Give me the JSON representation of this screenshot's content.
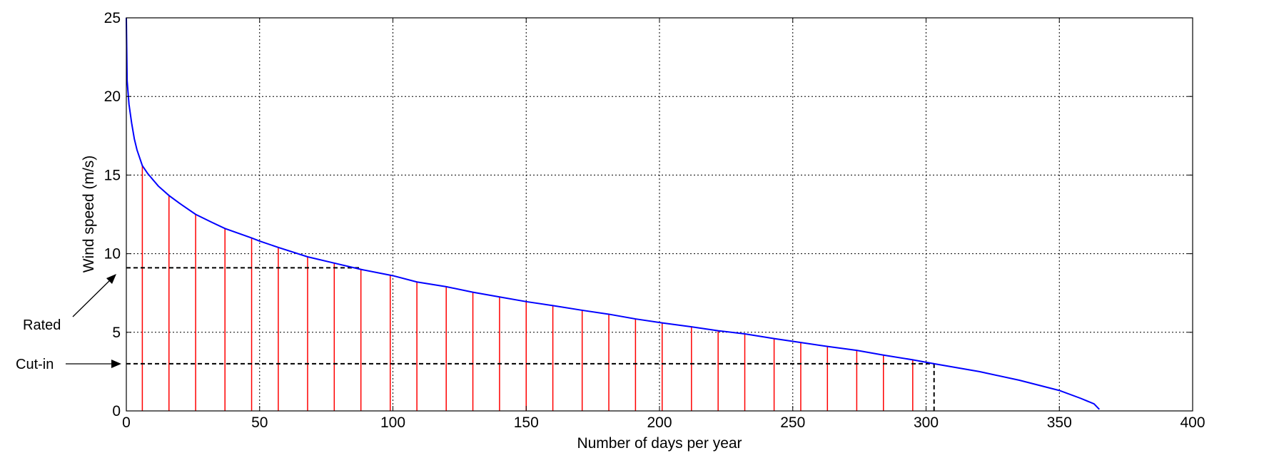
{
  "chart_data": {
    "type": "line",
    "title": "",
    "xlabel": "Number of days per year",
    "ylabel": "Wind speed (m/s)",
    "xlim": [
      0,
      400
    ],
    "ylim": [
      0,
      25
    ],
    "xticks": [
      0,
      50,
      100,
      150,
      200,
      250,
      300,
      350,
      400
    ],
    "yticks": [
      0,
      5,
      10,
      15,
      20,
      25
    ],
    "grid": true,
    "colors": {
      "curve": "#0000ff",
      "stems": "#ff0000",
      "reference": "#000000"
    },
    "series": [
      {
        "values": [
          [
            0,
            25
          ],
          [
            0.3,
            21
          ],
          [
            1,
            19.5
          ],
          [
            2,
            18.3
          ],
          [
            3,
            17.3
          ],
          [
            4,
            16.6
          ],
          [
            6,
            15.6
          ],
          [
            8,
            15.1
          ],
          [
            12,
            14.3
          ],
          [
            16,
            13.7
          ],
          [
            20,
            13.2
          ],
          [
            26,
            12.5
          ],
          [
            32,
            12
          ],
          [
            37,
            11.6
          ],
          [
            47,
            11
          ],
          [
            50,
            10.8
          ],
          [
            57,
            10.4
          ],
          [
            68,
            9.8
          ],
          [
            78,
            9.4
          ],
          [
            88,
            9.0
          ],
          [
            100,
            8.6
          ],
          [
            109,
            8.2
          ],
          [
            120,
            7.9
          ],
          [
            130,
            7.55
          ],
          [
            140,
            7.25
          ],
          [
            150,
            6.95
          ],
          [
            160,
            6.7
          ],
          [
            171,
            6.4
          ],
          [
            181,
            6.15
          ],
          [
            191,
            5.85
          ],
          [
            201,
            5.6
          ],
          [
            212,
            5.35
          ],
          [
            222,
            5.1
          ],
          [
            232,
            4.9
          ],
          [
            243,
            4.6
          ],
          [
            253,
            4.35
          ],
          [
            263,
            4.1
          ],
          [
            274,
            3.85
          ],
          [
            284,
            3.55
          ],
          [
            295,
            3.25
          ],
          [
            303,
            3.0
          ],
          [
            320,
            2.5
          ],
          [
            335,
            1.95
          ],
          [
            350,
            1.3
          ],
          [
            358,
            0.8
          ],
          [
            363,
            0.45
          ],
          [
            365,
            0.1
          ]
        ]
      }
    ],
    "stems": [
      {
        "x": 6,
        "y": 15.6
      },
      {
        "x": 16,
        "y": 13.7
      },
      {
        "x": 26,
        "y": 12.5
      },
      {
        "x": 37,
        "y": 11.6
      },
      {
        "x": 47,
        "y": 11.0
      },
      {
        "x": 57,
        "y": 10.4
      },
      {
        "x": 68,
        "y": 9.8
      },
      {
        "x": 78,
        "y": 9.4
      },
      {
        "x": 88,
        "y": 9.0
      },
      {
        "x": 99,
        "y": 8.6
      },
      {
        "x": 109,
        "y": 8.2
      },
      {
        "x": 120,
        "y": 7.9
      },
      {
        "x": 130,
        "y": 7.55
      },
      {
        "x": 140,
        "y": 7.25
      },
      {
        "x": 150,
        "y": 6.95
      },
      {
        "x": 160,
        "y": 6.7
      },
      {
        "x": 171,
        "y": 6.4
      },
      {
        "x": 181,
        "y": 6.15
      },
      {
        "x": 191,
        "y": 5.85
      },
      {
        "x": 201,
        "y": 5.6
      },
      {
        "x": 212,
        "y": 5.35
      },
      {
        "x": 222,
        "y": 5.1
      },
      {
        "x": 232,
        "y": 4.9
      },
      {
        "x": 243,
        "y": 4.6
      },
      {
        "x": 253,
        "y": 4.35
      },
      {
        "x": 263,
        "y": 4.1
      },
      {
        "x": 274,
        "y": 3.85
      },
      {
        "x": 284,
        "y": 3.55
      },
      {
        "x": 295,
        "y": 3.25
      }
    ],
    "reference_lines": [
      {
        "label": "Rated",
        "y": 9.1,
        "x_end": 88
      },
      {
        "label": "Cut-in",
        "y": 3.0,
        "x_end": 303
      }
    ]
  }
}
